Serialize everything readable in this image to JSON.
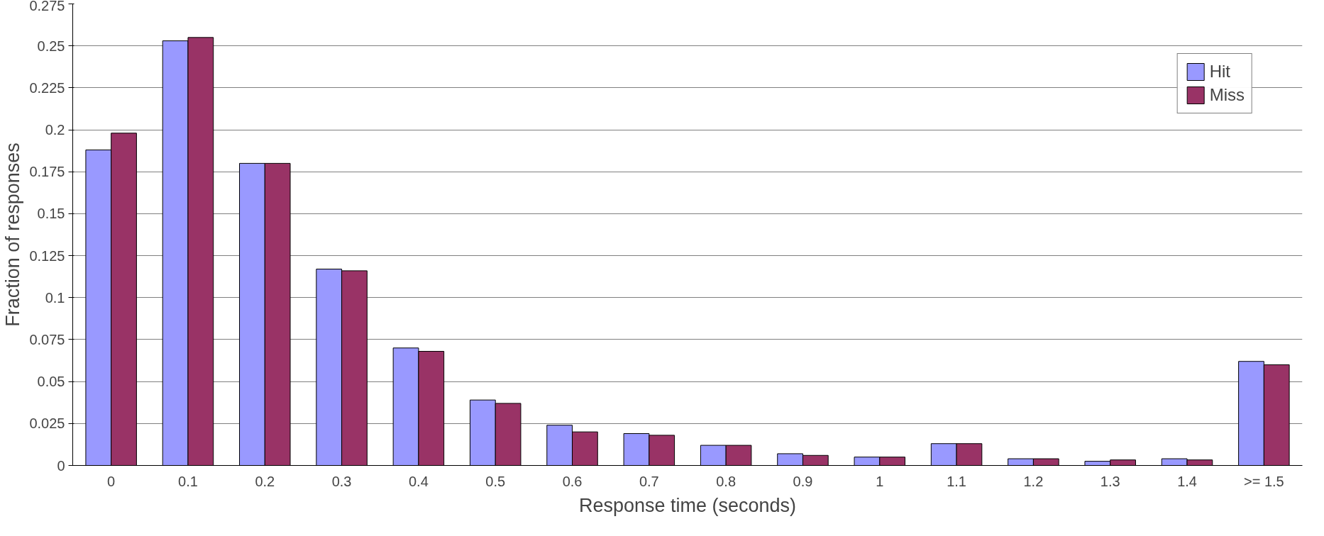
{
  "chart_data": {
    "type": "bar",
    "xlabel": "Response time (seconds)",
    "ylabel": "Fraction of responses",
    "categories": [
      "0",
      "0.1",
      "0.2",
      "0.3",
      "0.4",
      "0.5",
      "0.6",
      "0.7",
      "0.8",
      "0.9",
      "1",
      "1.1",
      "1.2",
      "1.3",
      "1.4",
      ">= 1.5"
    ],
    "series": [
      {
        "name": "Hit",
        "color": "#9999ff",
        "values": [
          0.188,
          0.253,
          0.18,
          0.117,
          0.07,
          0.039,
          0.024,
          0.019,
          0.012,
          0.007,
          0.005,
          0.013,
          0.004,
          0.0025,
          0.004,
          0.062
        ]
      },
      {
        "name": "Miss",
        "color": "#993366",
        "values": [
          0.198,
          0.255,
          0.18,
          0.116,
          0.068,
          0.037,
          0.02,
          0.018,
          0.012,
          0.006,
          0.005,
          0.013,
          0.004,
          0.0033,
          0.0033,
          0.06
        ]
      }
    ],
    "ylim": [
      0,
      0.275
    ],
    "yticks": [
      0,
      0.025,
      0.05,
      0.075,
      0.1,
      0.125,
      0.15,
      0.175,
      0.2,
      0.225,
      0.25,
      0.275
    ],
    "grid": "y",
    "legend": "top right"
  }
}
